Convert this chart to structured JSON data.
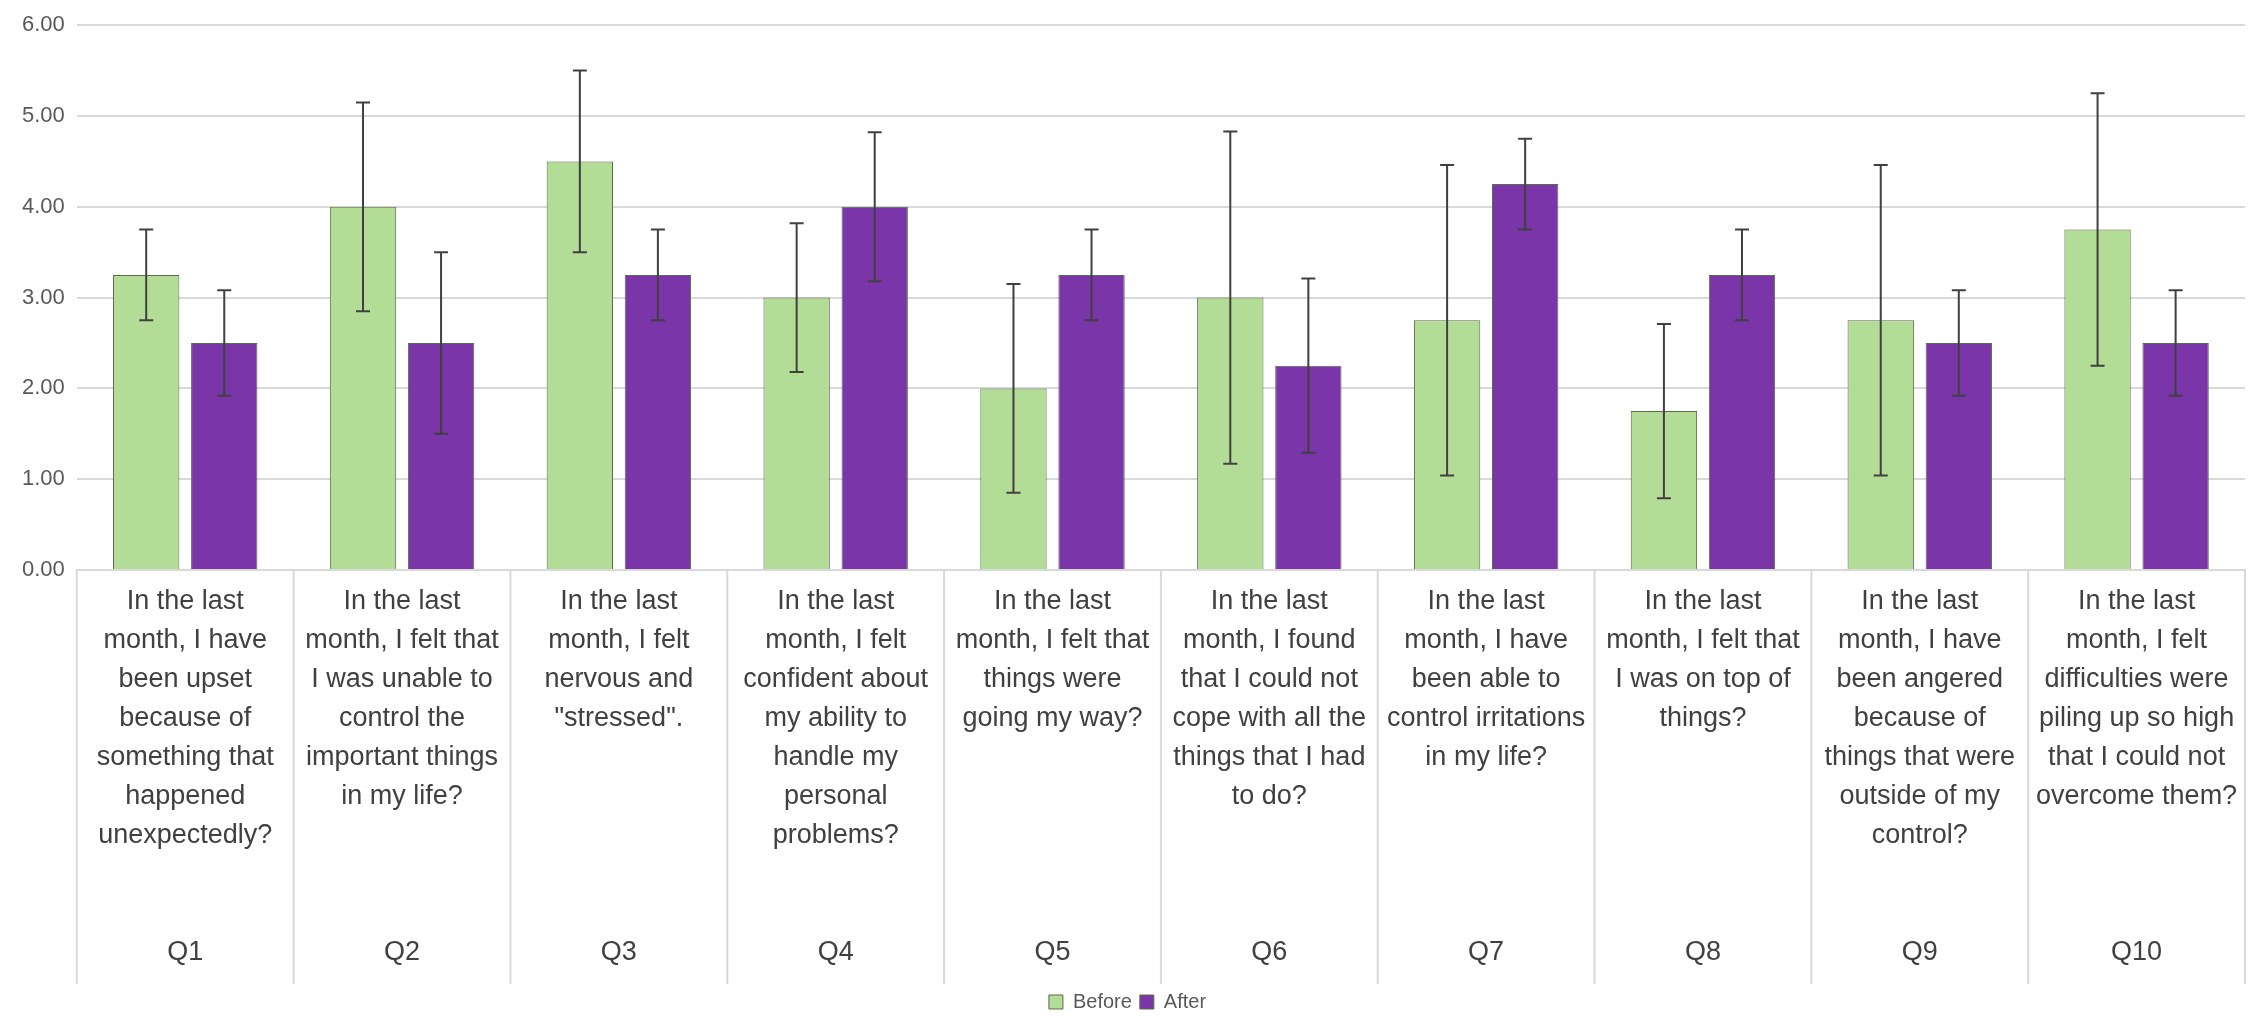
{
  "chart_data": {
    "type": "bar",
    "categories": [
      "In the last month, I have been upset because of something that happened unexpectedly?\nQ1",
      "In the last month, I felt that I was unable to control the important things in my life?\nQ2",
      "In the last month, I felt nervous and \"stressed\".\nQ3",
      "In the last month, I felt confident about my ability to handle my personal problems?\nQ4",
      "In the last month, I felt that things were going my way?\nQ5",
      "In the last month, I found that I could not cope with all the things that I had to do?\nQ6",
      "In the last month, I have been able to control irritations in my life?\nQ7",
      "In the last month, I felt that I was on top of things?\nQ8",
      "In the last month, I have been angered because of things that were outside of my control?\nQ9",
      "In the last month, I felt difficulties were piling up so high that I could not overcome them?\nQ10"
    ],
    "series": [
      {
        "name": "Before",
        "color": "#b3dc96",
        "values": [
          3.25,
          4.0,
          4.5,
          3.0,
          2.0,
          3.0,
          2.75,
          1.75,
          2.75,
          3.75
        ],
        "errors": [
          0.5,
          1.15,
          1.0,
          0.82,
          1.15,
          1.83,
          1.71,
          0.96,
          1.71,
          1.5
        ]
      },
      {
        "name": "After",
        "color": "#7a35a8",
        "values": [
          2.5,
          2.5,
          3.25,
          4.0,
          3.25,
          2.25,
          4.25,
          3.25,
          2.5,
          2.5
        ],
        "errors": [
          0.58,
          1.0,
          0.5,
          0.82,
          0.5,
          0.96,
          0.5,
          0.5,
          0.58,
          0.58
        ]
      }
    ],
    "ylim": [
      0,
      6
    ],
    "yticks": [
      {
        "value": 0,
        "label": "0.00"
      },
      {
        "value": 1,
        "label": "1.00"
      },
      {
        "value": 2,
        "label": "2.00"
      },
      {
        "value": 3,
        "label": "3.00"
      },
      {
        "value": 4,
        "label": "4.00"
      },
      {
        "value": 5,
        "label": "5.00"
      },
      {
        "value": 6,
        "label": "6.00"
      }
    ],
    "grid": "y",
    "legend": "bottom"
  }
}
